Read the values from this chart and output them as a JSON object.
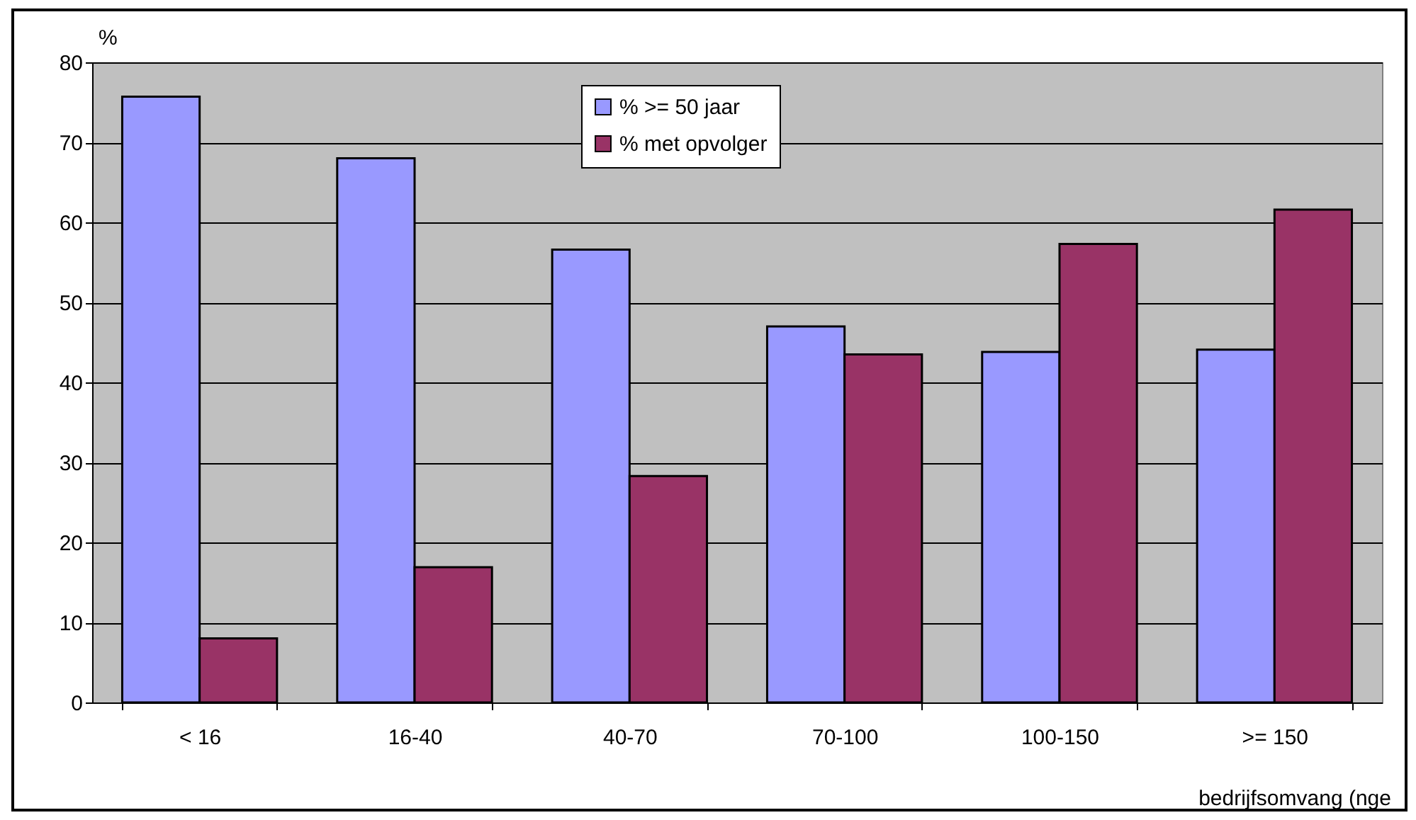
{
  "chart_data": {
    "type": "bar",
    "ylabel": "%",
    "xlabel": "bedrijfsomvang (nge",
    "categories": [
      "< 16",
      "16-40",
      "40-70",
      "70-100",
      "100-150",
      ">= 150"
    ],
    "series": [
      {
        "name": "% >= 50 jaar",
        "color": "#9999ff",
        "values": [
          75.7,
          68.0,
          56.6,
          47.0,
          43.8,
          44.1
        ]
      },
      {
        "name": "% met opvolger",
        "color": "#993366",
        "values": [
          8.0,
          16.9,
          28.3,
          43.5,
          57.3,
          61.6
        ]
      }
    ],
    "ylim": [
      0,
      80
    ],
    "yticks": [
      0,
      10,
      20,
      30,
      40,
      50,
      60,
      70,
      80
    ],
    "grid": "y",
    "legend": "top"
  }
}
